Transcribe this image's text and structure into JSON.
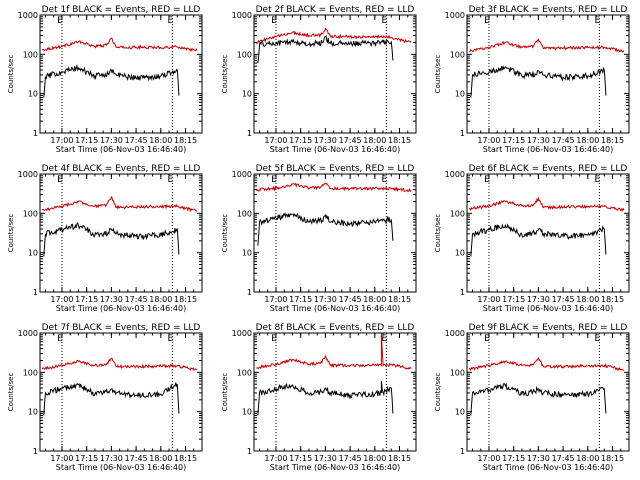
{
  "figure": {
    "background": "#ffffff",
    "axis_color": "#000000"
  },
  "chart_data": [
    {
      "type": "line",
      "title": "Det 1f BLACK = Events, RED = LLD",
      "xlabel": "Start Time (06-Nov-03 16:46:40)",
      "ylabel": "Counts/sec",
      "yscale": "log",
      "ylim": [
        1,
        1000
      ],
      "xlim": [
        "16:46:40",
        "18:25:00"
      ],
      "x_ticks": [
        "17:00",
        "17:15",
        "17:30",
        "17:45",
        "18:00",
        "18:15"
      ],
      "y_ticks": [
        "1",
        "10",
        "100",
        "1000"
      ],
      "markers": [
        "E",
        "E"
      ],
      "vlines": [
        "17:00",
        "18:07"
      ],
      "series": [
        {
          "color": "#cc0000",
          "x": [
            "16:48",
            "17:00",
            "17:10",
            "17:20",
            "17:27",
            "17:30",
            "17:33",
            "17:45",
            "18:00",
            "18:10",
            "18:22"
          ],
          "y": [
            130,
            160,
            210,
            160,
            170,
            260,
            150,
            150,
            150,
            155,
            125
          ]
        },
        {
          "color": "#000000",
          "x": [
            "16:49",
            "16:50",
            "17:00",
            "17:10",
            "17:20",
            "17:28",
            "17:30",
            "17:33",
            "17:45",
            "18:00",
            "18:10",
            "18:11"
          ],
          "y": [
            8,
            27,
            36,
            45,
            28,
            32,
            40,
            30,
            25,
            28,
            40,
            9
          ]
        }
      ]
    },
    {
      "type": "line",
      "title": "Det 2f BLACK = Events, RED = LLD",
      "xlabel": "Start Time (06-Nov-03 16:46:40)",
      "ylabel": "Counts/sec",
      "yscale": "log",
      "ylim": [
        1,
        1000
      ],
      "xlim": [
        "16:46:40",
        "18:25:00"
      ],
      "x_ticks": [
        "17:00",
        "17:15",
        "17:30",
        "17:45",
        "18:00",
        "18:15"
      ],
      "y_ticks": [
        "1",
        "10",
        "100",
        "1000"
      ],
      "markers": [
        "E",
        "E"
      ],
      "vlines": [
        "17:00",
        "18:07"
      ],
      "series": [
        {
          "color": "#cc0000",
          "x": [
            "16:48",
            "17:00",
            "17:10",
            "17:20",
            "17:27",
            "17:30",
            "17:33",
            "17:45",
            "18:00",
            "18:10",
            "18:22"
          ],
          "y": [
            200,
            280,
            360,
            300,
            310,
            450,
            290,
            280,
            280,
            270,
            200
          ]
        },
        {
          "color": "#000000",
          "x": [
            "16:49",
            "16:50",
            "17:00",
            "17:10",
            "17:20",
            "17:28",
            "17:30",
            "17:33",
            "17:45",
            "18:00",
            "18:10",
            "18:11"
          ],
          "y": [
            60,
            180,
            190,
            210,
            180,
            200,
            280,
            190,
            185,
            195,
            205,
            70
          ]
        }
      ]
    },
    {
      "type": "line",
      "title": "Det 3f BLACK = Events, RED = LLD",
      "xlabel": "Start Time (06-Nov-03 16:46:40)",
      "ylabel": "Counts/sec",
      "yscale": "log",
      "ylim": [
        1,
        1000
      ],
      "xlim": [
        "16:46:40",
        "18:25:00"
      ],
      "x_ticks": [
        "17:00",
        "17:15",
        "17:30",
        "17:45",
        "18:00",
        "18:15"
      ],
      "y_ticks": [
        "1",
        "10",
        "100",
        "1000"
      ],
      "markers": [
        "E",
        "E"
      ],
      "vlines": [
        "17:00",
        "18:07"
      ],
      "series": [
        {
          "color": "#cc0000",
          "x": [
            "16:48",
            "17:00",
            "17:10",
            "17:20",
            "17:27",
            "17:30",
            "17:33",
            "17:45",
            "18:00",
            "18:10",
            "18:22"
          ],
          "y": [
            120,
            150,
            200,
            150,
            160,
            240,
            140,
            145,
            150,
            150,
            120
          ]
        },
        {
          "color": "#000000",
          "x": [
            "16:49",
            "16:50",
            "17:00",
            "17:10",
            "17:20",
            "17:28",
            "17:30",
            "17:33",
            "17:45",
            "18:00",
            "18:10",
            "18:11"
          ],
          "y": [
            8,
            30,
            35,
            48,
            28,
            32,
            38,
            30,
            26,
            28,
            40,
            9
          ]
        }
      ]
    },
    {
      "type": "line",
      "title": "Det 4f BLACK = Events, RED = LLD",
      "xlabel": "Start Time (06-Nov-03 16:46:40)",
      "ylabel": "Counts/sec",
      "yscale": "log",
      "ylim": [
        1,
        1000
      ],
      "xlim": [
        "16:46:40",
        "18:25:00"
      ],
      "x_ticks": [
        "17:00",
        "17:15",
        "17:30",
        "17:45",
        "18:00",
        "18:15"
      ],
      "y_ticks": [
        "1",
        "10",
        "100",
        "1000"
      ],
      "markers": [
        "E",
        "E"
      ],
      "vlines": [
        "17:00",
        "18:07"
      ],
      "series": [
        {
          "color": "#cc0000",
          "x": [
            "16:48",
            "17:00",
            "17:10",
            "17:20",
            "17:27",
            "17:30",
            "17:33",
            "17:45",
            "18:00",
            "18:10",
            "18:22"
          ],
          "y": [
            120,
            150,
            200,
            150,
            160,
            260,
            140,
            145,
            150,
            150,
            115
          ]
        },
        {
          "color": "#000000",
          "x": [
            "16:49",
            "16:50",
            "17:00",
            "17:10",
            "17:20",
            "17:28",
            "17:30",
            "17:33",
            "17:45",
            "18:00",
            "18:10",
            "18:11"
          ],
          "y": [
            8,
            30,
            38,
            50,
            28,
            32,
            40,
            30,
            26,
            28,
            40,
            9
          ]
        }
      ]
    },
    {
      "type": "line",
      "title": "Det 5f BLACK = Events, RED = LLD",
      "xlabel": "Start Time (06-Nov-03 16:46:40)",
      "ylabel": "Counts/sec",
      "yscale": "log",
      "ylim": [
        1,
        1000
      ],
      "xlim": [
        "16:46:40",
        "18:25:00"
      ],
      "x_ticks": [
        "17:00",
        "17:15",
        "17:30",
        "17:45",
        "18:00",
        "18:15"
      ],
      "y_ticks": [
        "1",
        "10",
        "100",
        "1000"
      ],
      "markers": [
        "E",
        "E"
      ],
      "vlines": [
        "17:00",
        "18:07"
      ],
      "series": [
        {
          "color": "#cc0000",
          "x": [
            "16:48",
            "17:00",
            "17:10",
            "17:20",
            "17:27",
            "17:30",
            "17:33",
            "17:45",
            "18:00",
            "18:10",
            "18:22"
          ],
          "y": [
            400,
            430,
            550,
            440,
            450,
            580,
            430,
            420,
            430,
            420,
            380
          ]
        },
        {
          "color": "#000000",
          "x": [
            "16:49",
            "16:50",
            "17:00",
            "17:10",
            "17:20",
            "17:28",
            "17:30",
            "17:33",
            "17:45",
            "18:00",
            "18:10",
            "18:11"
          ],
          "y": [
            15,
            60,
            75,
            95,
            60,
            65,
            90,
            60,
            55,
            60,
            70,
            20
          ]
        }
      ]
    },
    {
      "type": "line",
      "title": "Det 6f BLACK = Events, RED = LLD",
      "xlabel": "Start Time (06-Nov-03 16:46:40)",
      "ylabel": "Counts/sec",
      "yscale": "log",
      "ylim": [
        1,
        1000
      ],
      "xlim": [
        "16:46:40",
        "18:25:00"
      ],
      "x_ticks": [
        "17:00",
        "17:15",
        "17:30",
        "17:45",
        "18:00",
        "18:15"
      ],
      "y_ticks": [
        "1",
        "10",
        "100",
        "1000"
      ],
      "markers": [
        "E",
        "E"
      ],
      "vlines": [
        "17:00",
        "18:07"
      ],
      "series": [
        {
          "color": "#cc0000",
          "x": [
            "16:48",
            "17:00",
            "17:10",
            "17:20",
            "17:27",
            "17:30",
            "17:33",
            "17:45",
            "18:00",
            "18:10",
            "18:22"
          ],
          "y": [
            130,
            155,
            200,
            155,
            160,
            240,
            140,
            145,
            150,
            150,
            120
          ]
        },
        {
          "color": "#000000",
          "x": [
            "16:49",
            "16:50",
            "17:00",
            "17:10",
            "17:20",
            "17:28",
            "17:30",
            "17:33",
            "17:45",
            "18:00",
            "18:10",
            "18:11"
          ],
          "y": [
            8,
            30,
            38,
            50,
            28,
            32,
            38,
            30,
            26,
            28,
            40,
            9
          ]
        }
      ]
    },
    {
      "type": "line",
      "title": "Det 7f BLACK = Events, RED = LLD",
      "xlabel": "Start Time (06-Nov-03 16:46:40)",
      "ylabel": "Counts/sec",
      "yscale": "log",
      "ylim": [
        1,
        1000
      ],
      "xlim": [
        "16:46:40",
        "18:25:00"
      ],
      "x_ticks": [
        "17:00",
        "17:15",
        "17:30",
        "17:45",
        "18:00",
        "18:15"
      ],
      "y_ticks": [
        "1",
        "10",
        "100",
        "1000"
      ],
      "markers": [
        "E",
        "E"
      ],
      "vlines": [
        "17:00",
        "18:07"
      ],
      "series": [
        {
          "color": "#cc0000",
          "x": [
            "16:48",
            "17:00",
            "17:10",
            "17:20",
            "17:27",
            "17:30",
            "17:33",
            "17:45",
            "18:00",
            "18:10",
            "18:22"
          ],
          "y": [
            120,
            150,
            190,
            150,
            155,
            230,
            140,
            140,
            145,
            145,
            115
          ]
        },
        {
          "color": "#000000",
          "x": [
            "16:49",
            "16:50",
            "17:00",
            "17:10",
            "17:20",
            "17:28",
            "17:30",
            "17:33",
            "17:45",
            "18:00",
            "18:10",
            "18:11"
          ],
          "y": [
            8,
            30,
            38,
            48,
            28,
            32,
            38,
            30,
            26,
            28,
            50,
            9
          ]
        }
      ]
    },
    {
      "type": "line",
      "title": "Det 8f BLACK = Events, RED = LLD",
      "xlabel": "Start Time (06-Nov-03 16:46:40)",
      "ylabel": "Counts/sec",
      "yscale": "log",
      "ylim": [
        1,
        1000
      ],
      "xlim": [
        "16:46:40",
        "18:25:00"
      ],
      "x_ticks": [
        "17:00",
        "17:15",
        "17:30",
        "17:45",
        "18:00",
        "18:15"
      ],
      "y_ticks": [
        "1",
        "10",
        "100",
        "1000"
      ],
      "markers": [
        "E",
        "E"
      ],
      "vlines": [
        "17:00",
        "18:07"
      ],
      "series": [
        {
          "color": "#cc0000",
          "x": [
            "16:48",
            "17:00",
            "17:10",
            "17:20",
            "17:27",
            "17:30",
            "17:33",
            "17:45",
            "18:00",
            "18:04",
            "18:04",
            "18:05",
            "18:10",
            "18:22"
          ],
          "y": [
            130,
            160,
            210,
            160,
            170,
            260,
            150,
            150,
            150,
            150,
            1000,
            150,
            155,
            125
          ]
        },
        {
          "color": "#000000",
          "x": [
            "16:49",
            "16:50",
            "17:00",
            "17:10",
            "17:20",
            "17:28",
            "17:30",
            "17:33",
            "17:45",
            "18:00",
            "18:04",
            "18:04",
            "18:05",
            "18:10",
            "18:11"
          ],
          "y": [
            8,
            30,
            38,
            48,
            28,
            32,
            40,
            30,
            26,
            28,
            30,
            60,
            30,
            40,
            9
          ]
        }
      ]
    },
    {
      "type": "line",
      "title": "Det 9f BLACK = Events, RED = LLD",
      "xlabel": "Start Time (06-Nov-03 16:46:40)",
      "ylabel": "Counts/sec",
      "yscale": "log",
      "ylim": [
        1,
        1000
      ],
      "xlim": [
        "16:46:40",
        "18:25:00"
      ],
      "x_ticks": [
        "17:00",
        "17:15",
        "17:30",
        "17:45",
        "18:00",
        "18:15"
      ],
      "y_ticks": [
        "1",
        "10",
        "100",
        "1000"
      ],
      "markers": [
        "E",
        "E"
      ],
      "vlines": [
        "17:00",
        "18:07"
      ],
      "series": [
        {
          "color": "#cc0000",
          "x": [
            "16:48",
            "17:00",
            "17:10",
            "17:20",
            "17:27",
            "17:30",
            "17:33",
            "17:45",
            "18:00",
            "18:10",
            "18:22"
          ],
          "y": [
            120,
            150,
            190,
            150,
            155,
            230,
            140,
            140,
            145,
            150,
            115
          ]
        },
        {
          "color": "#000000",
          "x": [
            "16:49",
            "16:50",
            "17:00",
            "17:10",
            "17:20",
            "17:28",
            "17:30",
            "17:33",
            "17:45",
            "18:00",
            "18:10",
            "18:11"
          ],
          "y": [
            8,
            30,
            36,
            45,
            28,
            32,
            38,
            30,
            26,
            28,
            38,
            9
          ]
        }
      ]
    }
  ]
}
